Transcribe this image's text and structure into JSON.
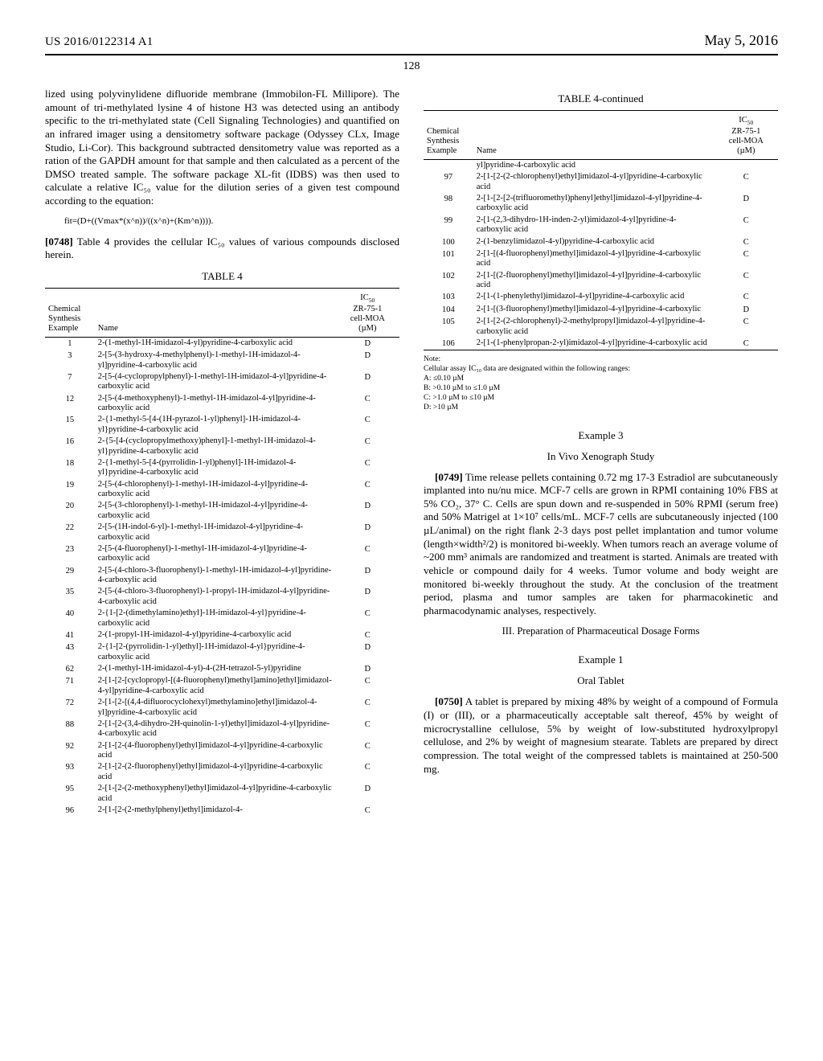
{
  "header": {
    "pub_number": "US 2016/0122314 A1",
    "pub_date": "May 5, 2016",
    "page_number": "128"
  },
  "left_col": {
    "para1": "lized using polyvinylidene difluoride membrane (Immobilon-FL Millipore). The amount of tri-methylated lysine 4 of histone H3 was detected using an antibody specific to the tri-methylated state (Cell Signaling Technologies) and quantified on an infrared imager using a densitometry software package (Odyssey CLx, Image Studio, Li-Cor). This background subtracted densitometry value was reported as a ration of the GAPDH amount for that sample and then calculated as a percent of the DMSO treated sample. The software package XL-fit (IDBS) was then used to calculate a relative IC₅₀ value for the dilution series of a given test compound according to the equation:",
    "formula": "fit=(D+((Vmax*(x^n))/((x^n)+(Km^n)))).",
    "para2_prefix": "[0748]",
    "para2": " Table 4 provides the cellular IC₅₀ values of various compounds disclosed herein.",
    "table4_title": "TABLE 4",
    "table4": {
      "col_headers": {
        "example": "Chemical\nSynthesis\nExample",
        "name": "Name",
        "ic50": "IC₅₀\nZR-75-1\ncell-MOA\n(µM)"
      },
      "rows": [
        {
          "ex": "1",
          "name": "2-(1-methyl-1H-imidazol-4-yl)pyridine-4-carboxylic acid",
          "ic": "D"
        },
        {
          "ex": "3",
          "name": "2-[5-(3-hydroxy-4-methylphenyl)-1-methyl-1H-imidazol-4-yl]pyridine-4-carboxylic acid",
          "ic": "D"
        },
        {
          "ex": "7",
          "name": "2-[5-(4-cyclopropylphenyl)-1-methyl-1H-imidazol-4-yl]pyridine-4-carboxylic acid",
          "ic": "D"
        },
        {
          "ex": "12",
          "name": "2-[5-(4-methoxyphenyl)-1-methyl-1H-imidazol-4-yl]pyridine-4-carboxylic acid",
          "ic": "C"
        },
        {
          "ex": "15",
          "name": "2-{1-methyl-5-[4-(1H-pyrazol-1-yl)phenyl]-1H-imidazol-4-yl}pyridine-4-carboxylic acid",
          "ic": "C"
        },
        {
          "ex": "16",
          "name": "2-{5-[4-(cyclopropylmethoxy)phenyl]-1-methyl-1H-imidazol-4-yl}pyridine-4-carboxylic acid",
          "ic": "C"
        },
        {
          "ex": "18",
          "name": "2-{1-methyl-5-[4-(pyrrolidin-1-yl)phenyl]-1H-imidazol-4-yl}pyridine-4-carboxylic acid",
          "ic": "C"
        },
        {
          "ex": "19",
          "name": "2-[5-(4-chlorophenyl)-1-methyl-1H-imidazol-4-yl]pyridine-4-carboxylic acid",
          "ic": "C"
        },
        {
          "ex": "20",
          "name": "2-[5-(3-chlorophenyl)-1-methyl-1H-imidazol-4-yl]pyridine-4-carboxylic acid",
          "ic": "D"
        },
        {
          "ex": "22",
          "name": "2-[5-(1H-indol-6-yl)-1-methyl-1H-imidazol-4-yl]pyridine-4-carboxylic acid",
          "ic": "D"
        },
        {
          "ex": "23",
          "name": "2-[5-(4-fluorophenyl)-1-methyl-1H-imidazol-4-yl]pyridine-4-carboxylic acid",
          "ic": "C"
        },
        {
          "ex": "29",
          "name": "2-[5-(4-chloro-3-fluorophenyl)-1-methyl-1H-imidazol-4-yl]pyridine-4-carboxylic acid",
          "ic": "D"
        },
        {
          "ex": "35",
          "name": "2-[5-(4-chloro-3-fluorophenyl)-1-propyl-1H-imidazol-4-yl]pyridine-4-carboxylic acid",
          "ic": "D"
        },
        {
          "ex": "40",
          "name": "2-{1-[2-(dimethylamino)ethyl]-1H-imidazol-4-yl}pyridine-4-carboxylic acid",
          "ic": "C"
        },
        {
          "ex": "41",
          "name": "2-(1-propyl-1H-imidazol-4-yl)pyridine-4-carboxylic acid",
          "ic": "C"
        },
        {
          "ex": "43",
          "name": "2-{1-[2-(pyrrolidin-1-yl)ethyl]-1H-imidazol-4-yl}pyridine-4-carboxylic acid",
          "ic": "D"
        },
        {
          "ex": "62",
          "name": "2-(1-methyl-1H-imidazol-4-yl)-4-(2H-tetrazol-5-yl)pyridine",
          "ic": "D"
        },
        {
          "ex": "71",
          "name": "2-[1-[2-[cyclopropyl-[(4-fluorophenyl)methyl]amino]ethyl]imidazol-4-yl]pyridine-4-carboxylic acid",
          "ic": "C"
        },
        {
          "ex": "72",
          "name": "2-[1-[2-[(4,4-difluorocyclohexyl)methylamino]ethyl]imidazol-4-yl]pyridine-4-carboxylic acid",
          "ic": "C"
        },
        {
          "ex": "88",
          "name": "2-[1-[2-(3,4-dihydro-2H-quinolin-1-yl)ethyl]imidazol-4-yl]pyridine-4-carboxylic acid",
          "ic": "C"
        },
        {
          "ex": "92",
          "name": "2-[1-[2-(4-fluorophenyl)ethyl]imidazol-4-yl]pyridine-4-carboxylic acid",
          "ic": "C"
        },
        {
          "ex": "93",
          "name": "2-[1-[2-(2-fluorophenyl)ethyl]imidazol-4-yl]pyridine-4-carboxylic acid",
          "ic": "C"
        },
        {
          "ex": "95",
          "name": "2-[1-[2-(2-methoxyphenyl)ethyl]imidazol-4-yl]pyridine-4-carboxylic acid",
          "ic": "D"
        },
        {
          "ex": "96",
          "name": "2-[1-[2-(2-methylphenyl)ethyl]imidazol-4-",
          "ic": "C"
        }
      ]
    }
  },
  "right_col": {
    "table4_cont_title": "TABLE 4-continued",
    "table4_cont": {
      "rows": [
        {
          "ex": "",
          "name": "yl]pyridine-4-carboxylic acid",
          "ic": ""
        },
        {
          "ex": "97",
          "name": "2-[1-[2-(2-chlorophenyl)ethyl]imidazol-4-yl]pyridine-4-carboxylic acid",
          "ic": "C"
        },
        {
          "ex": "98",
          "name": "2-[1-[2-[2-(trifluoromethyl)phenyl]ethyl]imidazol-4-yl]pyridine-4-carboxylic acid",
          "ic": "D"
        },
        {
          "ex": "99",
          "name": "2-[1-(2,3-dihydro-1H-inden-2-yl)imidazol-4-yl]pyridine-4-carboxylic acid",
          "ic": "C"
        },
        {
          "ex": "100",
          "name": "2-(1-benzylimidazol-4-yl)pyridine-4-carboxylic acid",
          "ic": "C"
        },
        {
          "ex": "101",
          "name": "2-[1-[(4-fluorophenyl)methyl]imidazol-4-yl]pyridine-4-carboxylic acid",
          "ic": "C"
        },
        {
          "ex": "102",
          "name": "2-[1-[(2-fluorophenyl)methyl]imidazol-4-yl]pyridine-4-carboxylic acid",
          "ic": "C"
        },
        {
          "ex": "103",
          "name": "2-[1-(1-phenylethyl)imidazol-4-yl]pyridine-4-carboxylic acid",
          "ic": "C"
        },
        {
          "ex": "104",
          "name": "2-[1-[(3-fluorophenyl)methyl]imidazol-4-yl]pyridine-4-carboxylic",
          "ic": "D"
        },
        {
          "ex": "105",
          "name": "2-[1-[2-(2-chlorophenyl)-2-methylpropyl]imidazol-4-yl]pyridine-4-carboxylic acid",
          "ic": "C"
        },
        {
          "ex": "106",
          "name": "2-[1-(1-phenylpropan-2-yl)imidazol-4-yl]pyridine-4-carboxylic acid",
          "ic": "C"
        }
      ]
    },
    "note_label": "Note:",
    "note_text": "Cellular assay IC₅₀ data are designated within the following ranges:",
    "note_A": "A: ≤0.10 µM",
    "note_B": "B: >0.10 µM to ≤1.0 µM",
    "note_C": "C: >1.0 µM to ≤10 µM",
    "note_D": "D: >10 µM",
    "example3_head": "Example 3",
    "example3_sub": "In Vivo Xenograph Study",
    "para3_prefix": "[0749]",
    "para3": " Time release pellets containing 0.72 mg 17-3 Estradiol are subcutaneously implanted into nu/nu mice. MCF-7 cells are grown in RPMI containing 10% FBS at 5% CO₂, 37° C. Cells are spun down and re-suspended in 50% RPMI (serum free) and 50% Matrigel at 1×10⁷ cells/mL. MCF-7 cells are subcutaneously injected (100 µL/animal) on the right flank 2-3 days post pellet implantation and tumor volume (length×width²/2) is monitored bi-weekly. When tumors reach an average volume of ~200 mm³ animals are randomized and treatment is started. Animals are treated with vehicle or compound daily for 4 weeks. Tumor volume and body weight are monitored bi-weekly throughout the study. At the conclusion of the treatment period, plasma and tumor samples are taken for pharmacokinetic and pharmacodynamic analyses, respectively.",
    "section3": "III. Preparation of Pharmaceutical Dosage Forms",
    "example1_head": "Example 1",
    "example1_sub": "Oral Tablet",
    "para4_prefix": "[0750]",
    "para4": " A tablet is prepared by mixing 48% by weight of a compound of Formula (I) or (III), or a pharmaceutically acceptable salt thereof, 45% by weight of microcrystalline cellulose, 5% by weight of low-substituted hydroxylpropyl cellulose, and 2% by weight of magnesium stearate. Tablets are prepared by direct compression. The total weight of the compressed tablets is maintained at 250-500 mg."
  }
}
